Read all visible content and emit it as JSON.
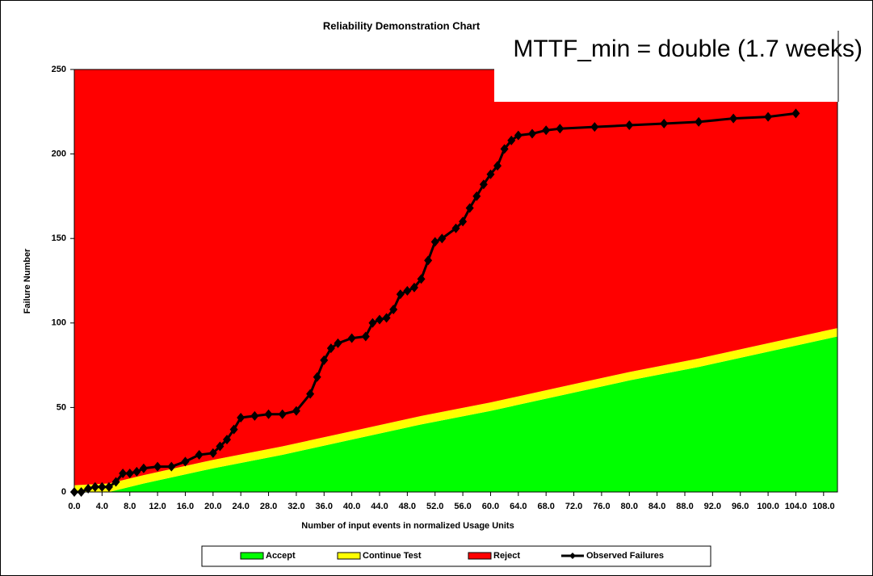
{
  "chart_data": {
    "type": "area",
    "title": "Reliability Demonstration Chart",
    "annotation": "MTTF_min = double (1.7 weeks)",
    "x_label": "Number of input events in normalized Usage Units",
    "y_label": "Failure Number",
    "xlim": [
      0,
      110
    ],
    "ylim": [
      0,
      250
    ],
    "xticks": [
      {
        "value": 0,
        "label": "0.0"
      },
      {
        "value": 4,
        "label": "4.0"
      },
      {
        "value": 8,
        "label": "8.0"
      },
      {
        "value": 12,
        "label": "12.0"
      },
      {
        "value": 16,
        "label": "16.0"
      },
      {
        "value": 20,
        "label": "20.0"
      },
      {
        "value": 24,
        "label": "24.0"
      },
      {
        "value": 28,
        "label": "28.0"
      },
      {
        "value": 32,
        "label": "32.0"
      },
      {
        "value": 36,
        "label": "36.0"
      },
      {
        "value": 40,
        "label": "40.0"
      },
      {
        "value": 44,
        "label": "44.0"
      },
      {
        "value": 48,
        "label": "48.0"
      },
      {
        "value": 52,
        "label": "52.0"
      },
      {
        "value": 56,
        "label": "56.0"
      },
      {
        "value": 60,
        "label": "60.0"
      },
      {
        "value": 64,
        "label": "64.0"
      },
      {
        "value": 68,
        "label": "68.0"
      },
      {
        "value": 72,
        "label": "72.0"
      },
      {
        "value": 76,
        "label": "76.0"
      },
      {
        "value": 80,
        "label": "80.0"
      },
      {
        "value": 84,
        "label": "84.0"
      },
      {
        "value": 88,
        "label": "88.0"
      },
      {
        "value": 92,
        "label": "92.0"
      },
      {
        "value": 96,
        "label": "96.0"
      },
      {
        "value": 100,
        "label": "100.0"
      },
      {
        "value": 104,
        "label": "104.0"
      },
      {
        "value": 108,
        "label": "108.0"
      }
    ],
    "yticks": [
      0,
      50,
      100,
      150,
      200,
      250
    ],
    "series": [
      {
        "name": "Accept",
        "color": "#00ff00",
        "x": [
          0,
          5,
          10,
          20,
          30,
          40,
          50,
          60,
          70,
          80,
          90,
          100,
          110
        ],
        "values": [
          0,
          0,
          5,
          14,
          22,
          31,
          40,
          48,
          57,
          66,
          74,
          83,
          92
        ]
      },
      {
        "name": "Continue Test",
        "color": "#ffff00",
        "x": [
          0,
          5,
          10,
          20,
          30,
          40,
          50,
          60,
          70,
          80,
          90,
          100,
          110
        ],
        "values": [
          4,
          5,
          5,
          5,
          5,
          5,
          5,
          5,
          5,
          5,
          5,
          5,
          5
        ]
      },
      {
        "name": "Reject",
        "color": "#ff0000",
        "x": [
          0,
          5,
          10,
          20,
          30,
          40,
          50,
          60,
          70,
          80,
          90,
          100,
          110
        ],
        "values": [
          246,
          245,
          240,
          231,
          223,
          214,
          205,
          197,
          188,
          179,
          171,
          162,
          153
        ]
      },
      {
        "name": "Observed Failures",
        "type": "line",
        "color": "#000000",
        "x": [
          0,
          1,
          2,
          3,
          4,
          5,
          6,
          7,
          8,
          9,
          10,
          12,
          14,
          16,
          18,
          20,
          21,
          22,
          23,
          24,
          26,
          28,
          30,
          32,
          34,
          35,
          36,
          37,
          38,
          40,
          42,
          43,
          44,
          45,
          46,
          47,
          48,
          49,
          50,
          51,
          52,
          53,
          55,
          56,
          57,
          58,
          59,
          60,
          61,
          62,
          63,
          64,
          66,
          68,
          70,
          75,
          80,
          85,
          90,
          95,
          100,
          104
        ],
        "values": [
          0,
          0,
          2,
          3,
          3,
          3,
          6,
          11,
          11,
          12,
          14,
          15,
          15,
          18,
          22,
          23,
          27,
          31,
          37,
          44,
          45,
          46,
          46,
          48,
          58,
          68,
          78,
          85,
          88,
          91,
          92,
          100,
          102,
          103,
          108,
          117,
          119,
          121,
          126,
          137,
          148,
          150,
          156,
          160,
          168,
          175,
          182,
          188,
          193,
          203,
          208,
          211,
          212,
          214,
          215,
          216,
          217,
          218,
          219,
          221,
          222,
          224
        ]
      }
    ]
  }
}
